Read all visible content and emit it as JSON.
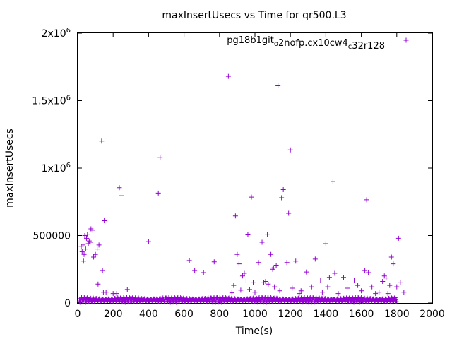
{
  "chart_data": {
    "type": "scatter",
    "title": "maxInsertUsecs vs Time for qr500.L3",
    "xlabel": "Time(s)",
    "ylabel": "maxInsertUsecs",
    "xlim": [
      0,
      2000
    ],
    "ylim": [
      0,
      2000000
    ],
    "grid": false,
    "legend_position": "top-right",
    "x_ticks": [
      {
        "value": 0,
        "label": "0"
      },
      {
        "value": 200,
        "label": "200"
      },
      {
        "value": 400,
        "label": "400"
      },
      {
        "value": 600,
        "label": "600"
      },
      {
        "value": 800,
        "label": "800"
      },
      {
        "value": 1000,
        "label": "1000"
      },
      {
        "value": 1200,
        "label": "1200"
      },
      {
        "value": 1400,
        "label": "1400"
      },
      {
        "value": 1600,
        "label": "1600"
      },
      {
        "value": 1800,
        "label": "1800"
      },
      {
        "value": 2000,
        "label": "2000"
      }
    ],
    "y_ticks": [
      {
        "value": 0,
        "base": "0",
        "exp": ""
      },
      {
        "value": 500000,
        "base": "500000",
        "exp": ""
      },
      {
        "value": 1000000,
        "base": "1x10",
        "exp": "6"
      },
      {
        "value": 1500000,
        "base": "1.5x10",
        "exp": "6"
      },
      {
        "value": 2000000,
        "base": "2x10",
        "exp": "6"
      }
    ],
    "series": [
      {
        "legend_parts": [
          {
            "text": "pg18b1git",
            "sub": false
          },
          {
            "text": "o",
            "sub": true
          },
          {
            "text": "2nofp.cx10cw4",
            "sub": false
          },
          {
            "text": "c",
            "sub": true
          },
          {
            "text": "32r128",
            "sub": false
          }
        ],
        "color": "#9400d3",
        "marker": "plus",
        "points": [
          [
            20,
            420000
          ],
          [
            25,
            380000
          ],
          [
            30,
            430000
          ],
          [
            33,
            310000
          ],
          [
            36,
            360000
          ],
          [
            40,
            500000
          ],
          [
            45,
            400000
          ],
          [
            50,
            480000
          ],
          [
            55,
            510000
          ],
          [
            60,
            440000
          ],
          [
            65,
            460000
          ],
          [
            70,
            450000
          ],
          [
            75,
            550000
          ],
          [
            85,
            540000
          ],
          [
            90,
            340000
          ],
          [
            100,
            360000
          ],
          [
            110,
            400000
          ],
          [
            115,
            140000
          ],
          [
            120,
            430000
          ],
          [
            135,
            1200000
          ],
          [
            140,
            240000
          ],
          [
            145,
            80000
          ],
          [
            150,
            610000
          ],
          [
            160,
            80000
          ],
          [
            200,
            70000
          ],
          [
            220,
            70000
          ],
          [
            235,
            855000
          ],
          [
            245,
            795000
          ],
          [
            280,
            100000
          ],
          [
            400,
            455000
          ],
          [
            455,
            815000
          ],
          [
            465,
            1080000
          ],
          [
            630,
            315000
          ],
          [
            660,
            240000
          ],
          [
            710,
            225000
          ],
          [
            770,
            305000
          ],
          [
            850,
            1680000
          ],
          [
            870,
            75000
          ],
          [
            880,
            130000
          ],
          [
            890,
            645000
          ],
          [
            900,
            360000
          ],
          [
            910,
            290000
          ],
          [
            920,
            95000
          ],
          [
            930,
            200000
          ],
          [
            940,
            220000
          ],
          [
            950,
            170000
          ],
          [
            960,
            505000
          ],
          [
            970,
            100000
          ],
          [
            980,
            785000
          ],
          [
            990,
            150000
          ],
          [
            1000,
            80000
          ],
          [
            1020,
            300000
          ],
          [
            1040,
            450000
          ],
          [
            1050,
            150000
          ],
          [
            1060,
            160000
          ],
          [
            1070,
            510000
          ],
          [
            1075,
            140000
          ],
          [
            1090,
            360000
          ],
          [
            1100,
            250000
          ],
          [
            1105,
            260000
          ],
          [
            1110,
            120000
          ],
          [
            1120,
            280000
          ],
          [
            1130,
            1610000
          ],
          [
            1140,
            90000
          ],
          [
            1150,
            780000
          ],
          [
            1160,
            840000
          ],
          [
            1180,
            300000
          ],
          [
            1190,
            665000
          ],
          [
            1200,
            1135000
          ],
          [
            1210,
            110000
          ],
          [
            1230,
            310000
          ],
          [
            1250,
            70000
          ],
          [
            1260,
            90000
          ],
          [
            1290,
            230000
          ],
          [
            1320,
            120000
          ],
          [
            1340,
            325000
          ],
          [
            1370,
            170000
          ],
          [
            1380,
            80000
          ],
          [
            1400,
            440000
          ],
          [
            1410,
            120000
          ],
          [
            1420,
            190000
          ],
          [
            1440,
            900000
          ],
          [
            1450,
            220000
          ],
          [
            1470,
            70000
          ],
          [
            1500,
            190000
          ],
          [
            1520,
            110000
          ],
          [
            1560,
            170000
          ],
          [
            1580,
            130000
          ],
          [
            1600,
            90000
          ],
          [
            1620,
            240000
          ],
          [
            1630,
            765000
          ],
          [
            1640,
            225000
          ],
          [
            1660,
            120000
          ],
          [
            1680,
            70000
          ],
          [
            1700,
            80000
          ],
          [
            1720,
            160000
          ],
          [
            1730,
            200000
          ],
          [
            1740,
            185000
          ],
          [
            1750,
            70000
          ],
          [
            1760,
            130000
          ],
          [
            1770,
            340000
          ],
          [
            1780,
            290000
          ],
          [
            1790,
            40000
          ],
          [
            1800,
            120000
          ],
          [
            1810,
            480000
          ],
          [
            1820,
            150000
          ],
          [
            1840,
            80000
          ]
        ]
      }
    ]
  }
}
